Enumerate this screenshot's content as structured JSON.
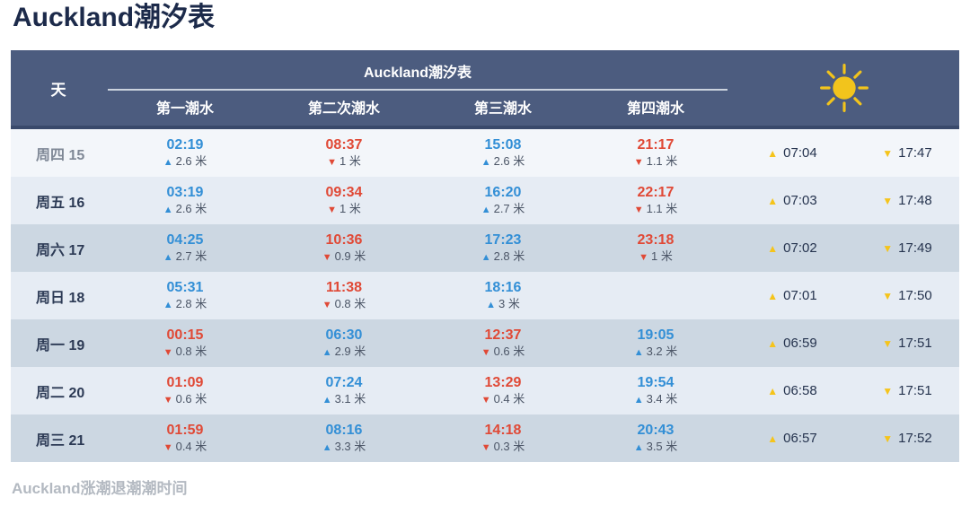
{
  "page_title": "Auckland潮汐表",
  "footer_caption": "Auckland涨潮退潮潮时间",
  "icons": {
    "rise": "▲",
    "fall": "▼",
    "sun": "sun-icon"
  },
  "colors": {
    "header_bg": "#4c5c7f",
    "high_tide_blue": "#338fd6",
    "low_tide_red": "#e04936",
    "sun_yellow": "#f5c41b",
    "row_light": "#e6ecf4",
    "row_dark": "#ccd7e2"
  },
  "table": {
    "day_header": "天",
    "group_title": "Auckland潮汐表",
    "tide_headers": [
      "第一潮水",
      "第二次潮水",
      "第三潮水",
      "第四潮水"
    ],
    "unit": "米",
    "rows": [
      {
        "day": "周四 15",
        "shade": "today",
        "tides": [
          {
            "time": "02:19",
            "dir": "rise",
            "height": "2.6"
          },
          {
            "time": "08:37",
            "dir": "fall",
            "height": "1"
          },
          {
            "time": "15:08",
            "dir": "rise",
            "height": "2.6"
          },
          {
            "time": "21:17",
            "dir": "fall",
            "height": "1.1"
          }
        ],
        "sunrise": "07:04",
        "sunset": "17:47"
      },
      {
        "day": "周五 16",
        "shade": "light",
        "tides": [
          {
            "time": "03:19",
            "dir": "rise",
            "height": "2.6"
          },
          {
            "time": "09:34",
            "dir": "fall",
            "height": "1"
          },
          {
            "time": "16:20",
            "dir": "rise",
            "height": "2.7"
          },
          {
            "time": "22:17",
            "dir": "fall",
            "height": "1.1"
          }
        ],
        "sunrise": "07:03",
        "sunset": "17:48"
      },
      {
        "day": "周六 17",
        "shade": "dark",
        "tides": [
          {
            "time": "04:25",
            "dir": "rise",
            "height": "2.7"
          },
          {
            "time": "10:36",
            "dir": "fall",
            "height": "0.9"
          },
          {
            "time": "17:23",
            "dir": "rise",
            "height": "2.8"
          },
          {
            "time": "23:18",
            "dir": "fall",
            "height": "1"
          }
        ],
        "sunrise": "07:02",
        "sunset": "17:49"
      },
      {
        "day": "周日 18",
        "shade": "light",
        "tides": [
          {
            "time": "05:31",
            "dir": "rise",
            "height": "2.8"
          },
          {
            "time": "11:38",
            "dir": "fall",
            "height": "0.8"
          },
          {
            "time": "18:16",
            "dir": "rise",
            "height": "3"
          },
          null
        ],
        "sunrise": "07:01",
        "sunset": "17:50"
      },
      {
        "day": "周一 19",
        "shade": "dark",
        "tides": [
          {
            "time": "00:15",
            "dir": "fall",
            "height": "0.8"
          },
          {
            "time": "06:30",
            "dir": "rise",
            "height": "2.9"
          },
          {
            "time": "12:37",
            "dir": "fall",
            "height": "0.6"
          },
          {
            "time": "19:05",
            "dir": "rise",
            "height": "3.2"
          }
        ],
        "sunrise": "06:59",
        "sunset": "17:51"
      },
      {
        "day": "周二 20",
        "shade": "light",
        "tides": [
          {
            "time": "01:09",
            "dir": "fall",
            "height": "0.6"
          },
          {
            "time": "07:24",
            "dir": "rise",
            "height": "3.1"
          },
          {
            "time": "13:29",
            "dir": "fall",
            "height": "0.4"
          },
          {
            "time": "19:54",
            "dir": "rise",
            "height": "3.4"
          }
        ],
        "sunrise": "06:58",
        "sunset": "17:51"
      },
      {
        "day": "周三 21",
        "shade": "dark",
        "tides": [
          {
            "time": "01:59",
            "dir": "fall",
            "height": "0.4"
          },
          {
            "time": "08:16",
            "dir": "rise",
            "height": "3.3"
          },
          {
            "time": "14:18",
            "dir": "fall",
            "height": "0.3"
          },
          {
            "time": "20:43",
            "dir": "rise",
            "height": "3.5"
          }
        ],
        "sunrise": "06:57",
        "sunset": "17:52"
      }
    ]
  }
}
